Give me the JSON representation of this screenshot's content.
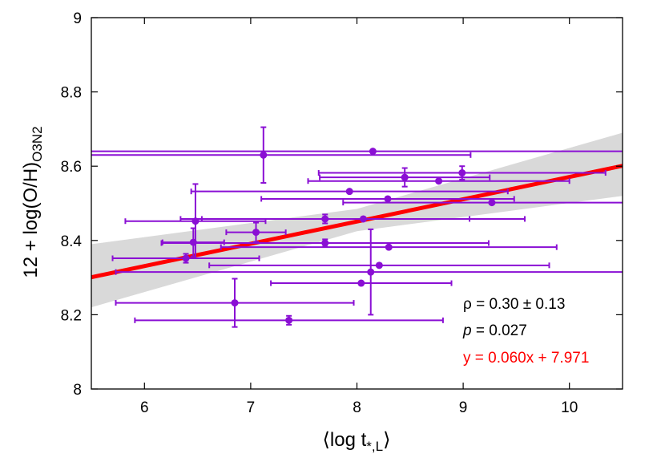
{
  "chart_data": {
    "type": "scatter",
    "xlabel": "⟨log t*,L⟩",
    "xlabel_parts": {
      "open": "⟨log t",
      "sub": "*,L",
      "close": "⟩"
    },
    "ylabel": "12 + log(O/H)O3N2",
    "ylabel_parts": {
      "main": "12 + log(O/H)",
      "sub": "O3N2"
    },
    "xlim": [
      5.5,
      10.5
    ],
    "ylim": [
      8,
      9
    ],
    "xticks": [
      "6",
      "7",
      "8",
      "9",
      "10"
    ],
    "yticks": [
      "8",
      "8.2",
      "8.4",
      "8.6",
      "8.8",
      "9"
    ],
    "grid": false,
    "colors": {
      "points": "#8a0fd4",
      "fit": "#ff0000",
      "band": "#d9d9d9",
      "text": "#000000"
    },
    "series": [
      {
        "points": [
          {
            "x": 8.15,
            "y": 8.64,
            "xerr": 2.9,
            "yerr": 0
          },
          {
            "x": 7.12,
            "y": 8.63,
            "xerr": 1.95,
            "yerr": 0.075
          },
          {
            "x": 8.99,
            "y": 8.582,
            "xerr": 1.35,
            "yerr": 0.018
          },
          {
            "x": 8.45,
            "y": 8.57,
            "xerr": 0.8,
            "yerr": 0.025
          },
          {
            "x": 8.77,
            "y": 8.56,
            "xerr": 1.23,
            "yerr": 0
          },
          {
            "x": 7.93,
            "y": 8.532,
            "xerr": 1.49,
            "yerr": 0
          },
          {
            "x": 8.29,
            "y": 8.512,
            "xerr": 1.19,
            "yerr": 0
          },
          {
            "x": 9.27,
            "y": 8.502,
            "xerr": 1.4,
            "yerr": 0
          },
          {
            "x": 6.48,
            "y": 8.452,
            "xerr": 0.66,
            "yerr": 0.1
          },
          {
            "x": 7.7,
            "y": 8.458,
            "xerr": 1.36,
            "yerr": 0.012
          },
          {
            "x": 8.06,
            "y": 8.458,
            "xerr": 1.52,
            "yerr": 0
          },
          {
            "x": 7.05,
            "y": 8.422,
            "xerr": 0.28,
            "yerr": 0.026
          },
          {
            "x": 6.46,
            "y": 8.395,
            "xerr": 0.29,
            "yerr": 0.038
          },
          {
            "x": 7.7,
            "y": 8.393,
            "xerr": 1.54,
            "yerr": 0.01
          },
          {
            "x": 8.3,
            "y": 8.382,
            "xerr": 1.58,
            "yerr": 0
          },
          {
            "x": 6.39,
            "y": 8.352,
            "xerr": 0.69,
            "yerr": 0.012
          },
          {
            "x": 8.21,
            "y": 8.333,
            "xerr": 1.6,
            "yerr": 0
          },
          {
            "x": 8.13,
            "y": 8.315,
            "xerr": 2.4,
            "yerr": 0.115
          },
          {
            "x": 8.04,
            "y": 8.285,
            "xerr": 0.85,
            "yerr": 0
          },
          {
            "x": 6.85,
            "y": 8.232,
            "xerr": 1.12,
            "yerr": 0.065
          },
          {
            "x": 7.36,
            "y": 8.185,
            "xerr": 1.45,
            "yerr": 0.012
          }
        ]
      }
    ],
    "fit": {
      "slope": 0.06,
      "intercept": 7.971
    },
    "confidence_band": [
      {
        "x": 5.5,
        "low": 8.22,
        "high": 8.39
      },
      {
        "x": 8.0,
        "low": 8.425,
        "high": 8.485
      },
      {
        "x": 10.5,
        "low": 8.52,
        "high": 8.69
      }
    ],
    "annotations": [
      {
        "text": "ρ = 0.30 ± 0.13",
        "color": "#000000"
      },
      {
        "text": "p = 0.027",
        "color": "#000000"
      },
      {
        "text": "y = 0.060x + 7.971",
        "color": "#ff0000"
      }
    ]
  }
}
